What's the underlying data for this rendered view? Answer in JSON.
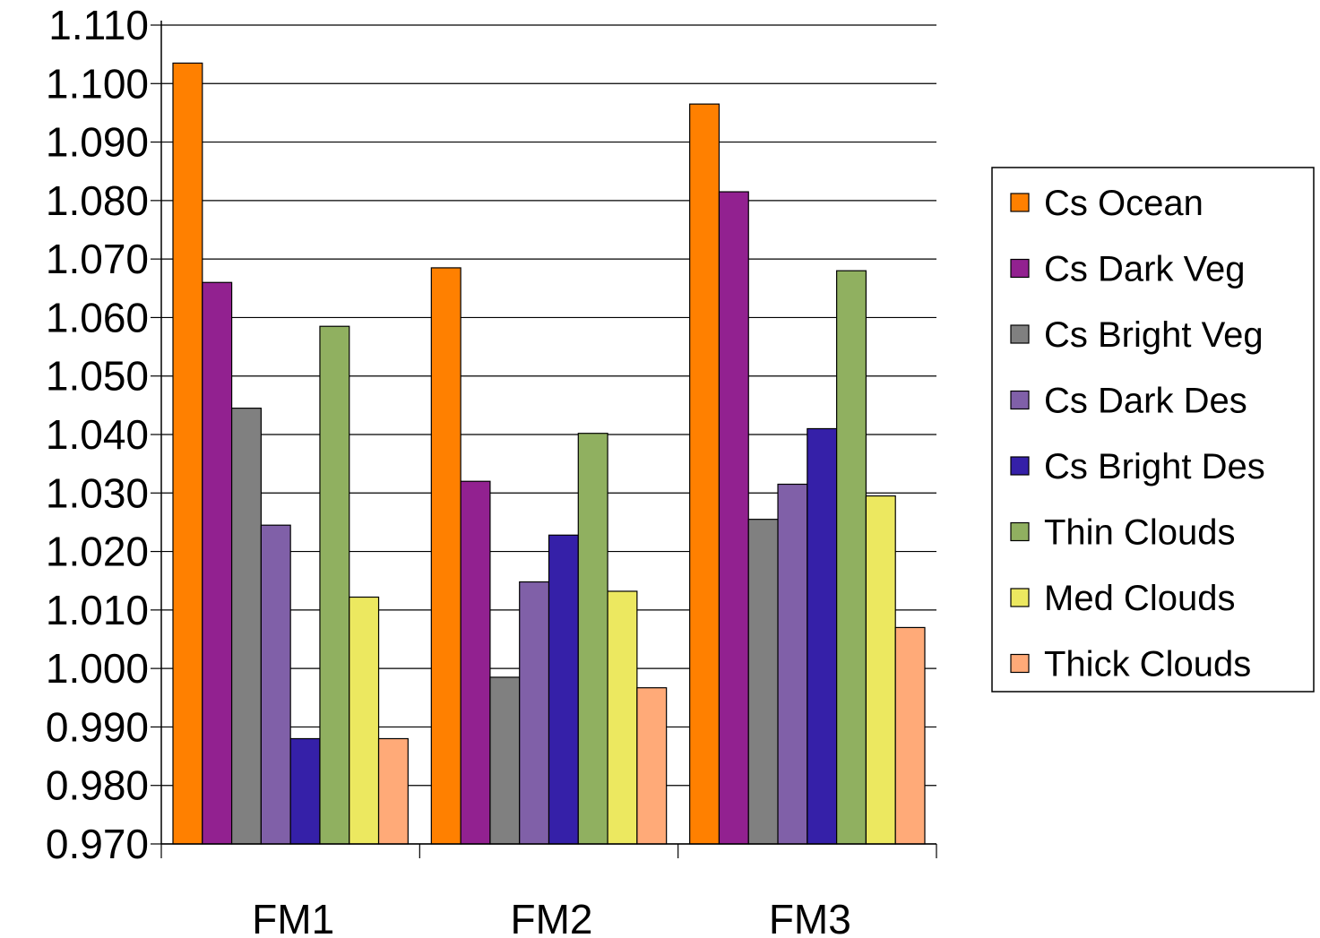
{
  "chart_data": {
    "type": "bar",
    "categories": [
      "FM1",
      "FM2",
      "FM3"
    ],
    "ylim": [
      0.97,
      1.11
    ],
    "yticks": [
      "0.970",
      "0.980",
      "0.990",
      "1.000",
      "1.010",
      "1.020",
      "1.030",
      "1.040",
      "1.050",
      "1.060",
      "1.070",
      "1.080",
      "1.090",
      "1.100",
      "1.110"
    ],
    "grid": true,
    "legend_position": "right",
    "series": [
      {
        "name": "Cs Ocean",
        "color": "#FF8000",
        "values": [
          1.1035,
          1.0685,
          1.0965
        ]
      },
      {
        "name": "Cs Dark Veg",
        "color": "#922190",
        "values": [
          1.066,
          1.032,
          1.0815
        ]
      },
      {
        "name": "Cs Bright Veg",
        "color": "#808080",
        "values": [
          1.0445,
          0.9985,
          1.0255
        ]
      },
      {
        "name": "Cs Dark Des",
        "color": "#8060A8",
        "values": [
          1.0245,
          1.0148,
          1.0315
        ]
      },
      {
        "name": "Cs Bright Des",
        "color": "#3520A8",
        "values": [
          0.988,
          1.0228,
          1.041
        ]
      },
      {
        "name": "Thin Clouds",
        "color": "#90B060",
        "values": [
          1.0585,
          1.0402,
          1.068
        ]
      },
      {
        "name": "Med Clouds",
        "color": "#ECE860",
        "values": [
          1.0122,
          1.0132,
          1.0295
        ]
      },
      {
        "name": "Thick Clouds",
        "color": "#FFAA78",
        "values": [
          0.988,
          0.9967,
          1.007
        ]
      }
    ]
  }
}
